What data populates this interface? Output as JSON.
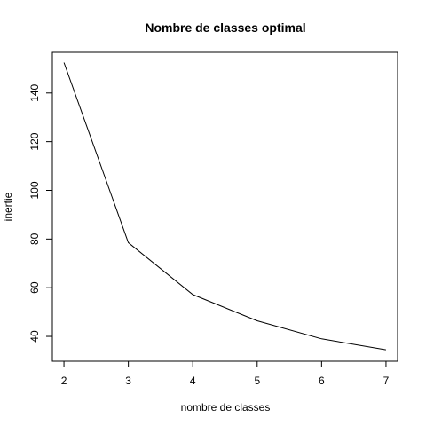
{
  "chart_data": {
    "type": "line",
    "title": "Nombre de classes optimal",
    "xlabel": "nombre de classes",
    "ylabel": "inertie",
    "x": [
      2,
      3,
      4,
      5,
      6,
      7
    ],
    "series": [
      {
        "values": [
          152.5,
          78.5,
          57.2,
          46.4,
          39.0,
          34.5
        ]
      }
    ],
    "xlim": [
      1.82,
      7.18
    ],
    "ylim": [
      29.8,
      156.7
    ],
    "xticks": [
      2,
      3,
      4,
      5,
      6,
      7
    ],
    "yticks": [
      40,
      60,
      80,
      100,
      120,
      140
    ],
    "grid": false,
    "line_color": "#000000"
  }
}
